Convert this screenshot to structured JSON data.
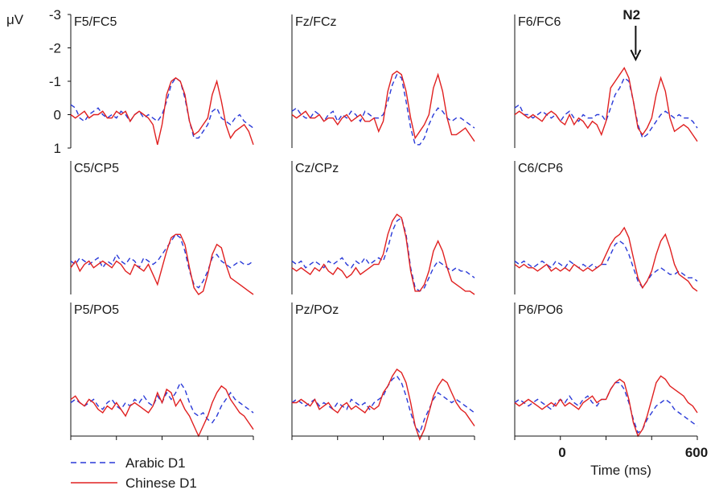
{
  "chart_data": {
    "type": "line",
    "y_unit": "μV",
    "y_ticks": [
      "-3",
      "-2",
      "-1",
      "0",
      "1"
    ],
    "ylim": [
      1,
      -3
    ],
    "y_axis_inverted": true,
    "x_ticks": [
      "0",
      "600"
    ],
    "xlabel": "Time (ms)",
    "xlim": [
      -200,
      600
    ],
    "annotation": "N2",
    "annotation_x": 330,
    "x": [
      -200,
      -180,
      -160,
      -140,
      -120,
      -100,
      -80,
      -60,
      -40,
      -20,
      0,
      20,
      40,
      60,
      80,
      100,
      120,
      140,
      160,
      180,
      200,
      220,
      240,
      260,
      280,
      300,
      320,
      340,
      360,
      380,
      400,
      420,
      440,
      460,
      480,
      500,
      520,
      540,
      560,
      580,
      600
    ],
    "legend": [
      {
        "name": "Arabic D1",
        "color": "#2a3ad8",
        "dash": true
      },
      {
        "name": "Chinese D1",
        "color": "#e02020",
        "dash": false
      }
    ],
    "panels": [
      {
        "title": "F5/FC5",
        "series": [
          {
            "name": "Arabic D1",
            "values": [
              -0.3,
              -0.2,
              0.1,
              0.2,
              0,
              -0.1,
              -0.2,
              0,
              0.1,
              0,
              0.1,
              -0.1,
              0,
              0.2,
              0,
              -0.1,
              0.1,
              0,
              0.1,
              0.2,
              0,
              -0.4,
              -0.9,
              -1.1,
              -1.0,
              -0.5,
              0.2,
              0.7,
              0.7,
              0.5,
              0.3,
              -0.1,
              -0.2,
              0.1,
              0.2,
              0.3,
              0.1,
              0,
              0.2,
              0.3,
              0.4
            ]
          },
          {
            "name": "Chinese D1",
            "values": [
              0,
              0.1,
              0,
              -0.1,
              0.1,
              0,
              0,
              -0.1,
              0.1,
              0.1,
              -0.1,
              0,
              -0.1,
              0.2,
              0,
              -0.1,
              0,
              0.1,
              0.3,
              0.9,
              0.3,
              -0.6,
              -1.0,
              -1.1,
              -1.0,
              -0.6,
              0.2,
              0.6,
              0.5,
              0.3,
              0.1,
              -0.6,
              -1.0,
              -0.4,
              0.3,
              0.7,
              0.5,
              0.4,
              0.3,
              0.5,
              0.9
            ]
          }
        ]
      },
      {
        "title": "Fz/FCz",
        "series": [
          {
            "name": "Arabic D1",
            "values": [
              -0.1,
              -0.2,
              0,
              0.1,
              0.1,
              -0.1,
              0,
              0.2,
              0,
              -0.1,
              0.2,
              0,
              0.1,
              -0.1,
              0,
              0.2,
              -0.1,
              0,
              0.1,
              0.1,
              0,
              -0.4,
              -0.9,
              -1.2,
              -1.1,
              -0.4,
              0.4,
              0.9,
              0.9,
              0.7,
              0.3,
              0,
              -0.2,
              -0.1,
              0.1,
              0.2,
              0.1,
              0.1,
              0.2,
              0.3,
              0.4
            ]
          },
          {
            "name": "Chinese D1",
            "values": [
              0,
              0.1,
              0,
              -0.1,
              0.1,
              0.1,
              0,
              0.2,
              0.1,
              0.1,
              0.3,
              0.1,
              0,
              0.2,
              0.1,
              0,
              0.2,
              0.2,
              0.1,
              0.5,
              0.2,
              -0.7,
              -1.2,
              -1.3,
              -1.2,
              -0.7,
              0.1,
              0.7,
              0.5,
              0.3,
              0,
              -0.8,
              -1.2,
              -0.7,
              0.1,
              0.6,
              0.6,
              0.5,
              0.4,
              0.6,
              0.8
            ]
          }
        ]
      },
      {
        "title": "F6/FC6",
        "series": [
          {
            "name": "Arabic D1",
            "values": [
              -0.2,
              -0.3,
              0,
              0,
              0.1,
              0,
              -0.1,
              0,
              0.1,
              0,
              0.2,
              0,
              -0.1,
              0.1,
              0.2,
              0,
              0.1,
              0.1,
              0,
              0,
              0.2,
              -0.2,
              -0.6,
              -0.8,
              -1.1,
              -1.0,
              -0.4,
              0.3,
              0.7,
              0.6,
              0.4,
              0.2,
              0,
              -0.1,
              0,
              0.1,
              0,
              0.1,
              0.1,
              0.2,
              0.4
            ]
          },
          {
            "name": "Chinese D1",
            "values": [
              0,
              -0.1,
              0,
              0.1,
              0,
              0.1,
              0.2,
              0,
              -0.1,
              0,
              0.2,
              0.3,
              0,
              0.3,
              0.1,
              0.2,
              0.4,
              0.2,
              0.3,
              0.6,
              0.2,
              -0.8,
              -1.0,
              -1.2,
              -1.4,
              -1.1,
              -0.4,
              0.4,
              0.6,
              0.4,
              0.1,
              -0.6,
              -1.1,
              -0.7,
              0.1,
              0.5,
              0.4,
              0.3,
              0.4,
              0.6,
              0.8
            ]
          }
        ]
      },
      {
        "title": "C5/CP5",
        "series": [
          {
            "name": "Arabic D1",
            "values": [
              0,
              0.1,
              -0.1,
              0,
              0.1,
              0,
              -0.1,
              0.2,
              0,
              0.1,
              -0.2,
              0,
              0.1,
              -0.1,
              0,
              0.2,
              -0.1,
              0,
              0.1,
              0,
              -0.2,
              -0.4,
              -0.6,
              -0.8,
              -0.7,
              -0.3,
              0.3,
              0.7,
              0.8,
              0.6,
              0.3,
              -0.1,
              -0.2,
              0,
              0.1,
              0.2,
              0.1,
              0,
              0.1,
              0.1,
              0
            ]
          },
          {
            "name": "Chinese D1",
            "values": [
              0.2,
              0,
              0.3,
              0.1,
              0,
              0.2,
              0.1,
              0,
              0.1,
              0.2,
              0,
              0.1,
              0.3,
              0.4,
              0.1,
              0.2,
              0.3,
              0.1,
              0.4,
              0.7,
              0.2,
              -0.3,
              -0.7,
              -0.8,
              -0.8,
              -0.5,
              0.2,
              0.8,
              1.0,
              0.9,
              0.4,
              -0.2,
              -0.5,
              -0.4,
              0.1,
              0.5,
              0.6,
              0.7,
              0.8,
              0.9,
              1.0
            ]
          }
        ]
      },
      {
        "title": "Cz/CPz",
        "series": [
          {
            "name": "Arabic D1",
            "values": [
              0,
              0.1,
              0,
              0.2,
              0.1,
              0,
              0.1,
              0.2,
              0,
              0.1,
              0,
              -0.1,
              0.1,
              0.2,
              0,
              0.1,
              -0.1,
              0.1,
              0,
              -0.1,
              0,
              -0.4,
              -0.9,
              -1.2,
              -1.3,
              -0.8,
              0.2,
              0.8,
              0.9,
              0.8,
              0.5,
              0.2,
              0,
              0.1,
              0.2,
              0.3,
              0.2,
              0.3,
              0.3,
              0.4,
              0.5
            ]
          },
          {
            "name": "Chinese D1",
            "values": [
              0.2,
              0.3,
              0.2,
              0.3,
              0.4,
              0.2,
              0.3,
              0.1,
              0.3,
              0.4,
              0.2,
              0.3,
              0.5,
              0.4,
              0.2,
              0.4,
              0.3,
              0.2,
              0.1,
              0.1,
              -0.2,
              -0.8,
              -1.2,
              -1.4,
              -1.3,
              -0.7,
              0.3,
              0.9,
              0.9,
              0.7,
              0.3,
              -0.3,
              -0.6,
              -0.3,
              0.2,
              0.6,
              0.7,
              0.8,
              0.9,
              0.9,
              1.0
            ]
          }
        ]
      },
      {
        "title": "C6/CP6",
        "series": [
          {
            "name": "Arabic D1",
            "values": [
              0,
              0.1,
              0,
              0.1,
              0.2,
              0.1,
              0,
              0.1,
              0.2,
              0,
              0.1,
              0.2,
              0,
              0.1,
              0.2,
              0.1,
              0.2,
              0.1,
              0.2,
              0.1,
              0.1,
              -0.2,
              -0.5,
              -0.6,
              -0.5,
              -0.2,
              0.2,
              0.6,
              0.8,
              0.6,
              0.4,
              0.3,
              0.2,
              0.3,
              0.4,
              0.4,
              0.3,
              0.4,
              0.5,
              0.5,
              0.6
            ]
          },
          {
            "name": "Chinese D1",
            "values": [
              0.1,
              0.2,
              0.1,
              0.2,
              0.2,
              0.3,
              0.2,
              0.1,
              0.3,
              0.2,
              0.3,
              0.2,
              0.3,
              0.1,
              0.2,
              0.3,
              0.2,
              0.3,
              0.2,
              0.1,
              -0.2,
              -0.5,
              -0.7,
              -0.8,
              -1.0,
              -0.7,
              -0.1,
              0.5,
              0.8,
              0.6,
              0.3,
              -0.2,
              -0.6,
              -0.8,
              -0.4,
              0.1,
              0.4,
              0.5,
              0.6,
              0.8,
              0.9
            ]
          }
        ]
      },
      {
        "title": "P5/PO5",
        "series": [
          {
            "name": "Arabic D1",
            "values": [
              0,
              -0.1,
              0,
              0.1,
              0,
              -0.1,
              0.1,
              0.2,
              0,
              -0.1,
              0.1,
              0.2,
              0,
              0.1,
              -0.1,
              0,
              -0.2,
              0,
              0.1,
              -0.2,
              0,
              -0.3,
              -0.1,
              -0.3,
              -0.6,
              -0.4,
              0,
              0.3,
              0.4,
              0.3,
              0.5,
              0.6,
              0.4,
              0.1,
              -0.1,
              -0.3,
              -0.1,
              0,
              0.1,
              0.2,
              0.3
            ]
          },
          {
            "name": "Chinese D1",
            "values": [
              -0.1,
              -0.2,
              0,
              0.1,
              -0.1,
              0,
              0.2,
              0.3,
              0.1,
              0.2,
              0,
              0.2,
              0.4,
              0.1,
              0,
              0.1,
              0.2,
              0.3,
              0.1,
              -0.3,
              0,
              -0.4,
              -0.3,
              0.1,
              -0.1,
              0.2,
              0.4,
              0.7,
              1.0,
              0.7,
              0.4,
              0,
              -0.3,
              -0.5,
              -0.4,
              -0.1,
              0.1,
              0.3,
              0.4,
              0.6,
              0.8
            ]
          }
        ]
      },
      {
        "title": "Pz/POz",
        "series": [
          {
            "name": "Arabic D1",
            "values": [
              0,
              -0.1,
              0,
              0.1,
              0,
              -0.1,
              0.1,
              0,
              0.1,
              0.2,
              0,
              0.1,
              0.2,
              -0.1,
              0,
              0.1,
              0,
              0.2,
              0,
              -0.1,
              -0.2,
              -0.5,
              -0.7,
              -0.8,
              -0.6,
              -0.2,
              0.3,
              0.7,
              0.9,
              0.5,
              0.2,
              -0.1,
              -0.3,
              -0.2,
              -0.1,
              0,
              -0.1,
              0,
              0.1,
              0.2,
              0.3
            ]
          },
          {
            "name": "Chinese D1",
            "values": [
              0,
              0,
              -0.1,
              0,
              0.1,
              -0.1,
              0.2,
              0.1,
              0,
              0.2,
              0.3,
              0.1,
              0,
              0.2,
              0.1,
              0.2,
              0.3,
              0.1,
              0.2,
              0.1,
              -0.3,
              -0.5,
              -0.8,
              -1.0,
              -0.9,
              -0.6,
              0,
              0.7,
              1.1,
              0.8,
              0.3,
              -0.2,
              -0.5,
              -0.7,
              -0.6,
              -0.3,
              0,
              0.2,
              0.3,
              0.5,
              0.7
            ]
          }
        ]
      },
      {
        "title": "P6/PO6",
        "series": [
          {
            "name": "Arabic D1",
            "values": [
              0,
              -0.1,
              0,
              0.1,
              0,
              -0.1,
              0,
              0.1,
              0.2,
              0,
              -0.1,
              0,
              -0.2,
              0,
              0.1,
              -0.1,
              -0.2,
              0,
              0.1,
              -0.1,
              -0.1,
              -0.4,
              -0.6,
              -0.6,
              -0.4,
              0,
              0.5,
              0.9,
              0.8,
              0.5,
              0.3,
              0.1,
              0,
              -0.1,
              0,
              0.2,
              0.3,
              0.4,
              0.5,
              0.6,
              0.7
            ]
          },
          {
            "name": "Chinese D1",
            "values": [
              0,
              0.1,
              0,
              -0.1,
              0,
              0.1,
              0.2,
              0.1,
              0,
              0.1,
              -0.1,
              0.1,
              0,
              0.1,
              0.2,
              0,
              -0.1,
              -0.2,
              0,
              -0.1,
              -0.1,
              -0.4,
              -0.6,
              -0.7,
              -0.6,
              -0.1,
              0.6,
              1.0,
              0.8,
              0.4,
              -0.1,
              -0.6,
              -0.8,
              -0.7,
              -0.5,
              -0.4,
              -0.3,
              -0.2,
              0,
              0.1,
              0.3
            ]
          }
        ]
      }
    ]
  }
}
